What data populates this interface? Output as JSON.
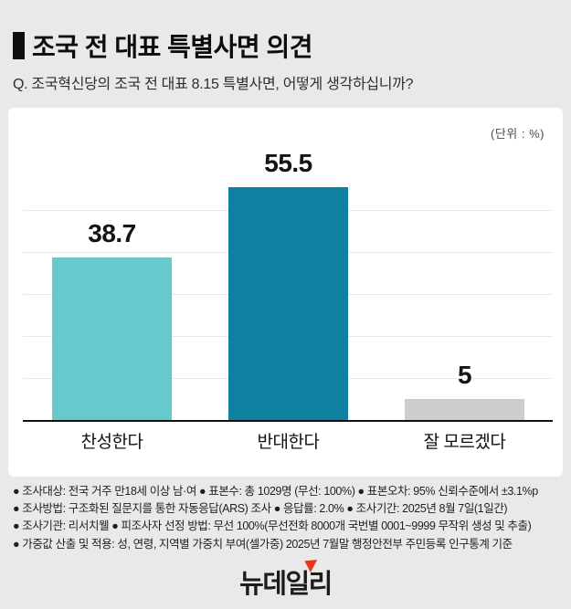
{
  "header": {
    "title": "조국 전 대표 특별사면 의견",
    "question": "Q. 조국혁신당의 조국 전 대표 8.15 특별사면, 어떻게 생각하십니까?"
  },
  "chart": {
    "unit_label": "(단위 : %)"
  },
  "chart_data": {
    "type": "bar",
    "title": "조국 전 대표 특별사면 의견",
    "categories": [
      "찬성한다",
      "반대한다",
      "잘 모르겠다"
    ],
    "values": [
      38.7,
      55.5,
      5
    ],
    "value_labels": [
      "38.7",
      "55.5",
      "5"
    ],
    "bar_colors": [
      "#66c9cb",
      "#0f809f",
      "#cdcdcd"
    ],
    "unit": "%",
    "ylabel": "",
    "xlabel": "",
    "ylim": [
      0,
      75
    ],
    "grid": true,
    "grid_values": [
      10,
      20,
      30,
      40,
      50
    ],
    "legend": "none"
  },
  "footnotes": {
    "lines": [
      "● 조사대상: 전국 거주 만18세 이상 남·여 ● 표본수: 총 1029명 (무선: 100%) ● 표본오차: 95% 신뢰수준에서 ±3.1%p",
      "● 조사방법: 구조화된 질문지를 통한 자동응답(ARS) 조사 ● 응답률: 2.0% ● 조사기간: 2025년 8월 7일(1일간)",
      "● 조사기관: 리서치웰 ● 피조사자 선정 방법: 무선 100%(무선전화 8000개 국번별 0001~9999 무작위 생성 및 추출)",
      "● 가중값 산출 및 적용: 성, 연령, 지역별 가중치 부여(셀가중) 2025년 7월말 행정안전부 주민등록 인구통계 기준"
    ]
  },
  "logo": {
    "text": "뉴데일리"
  }
}
